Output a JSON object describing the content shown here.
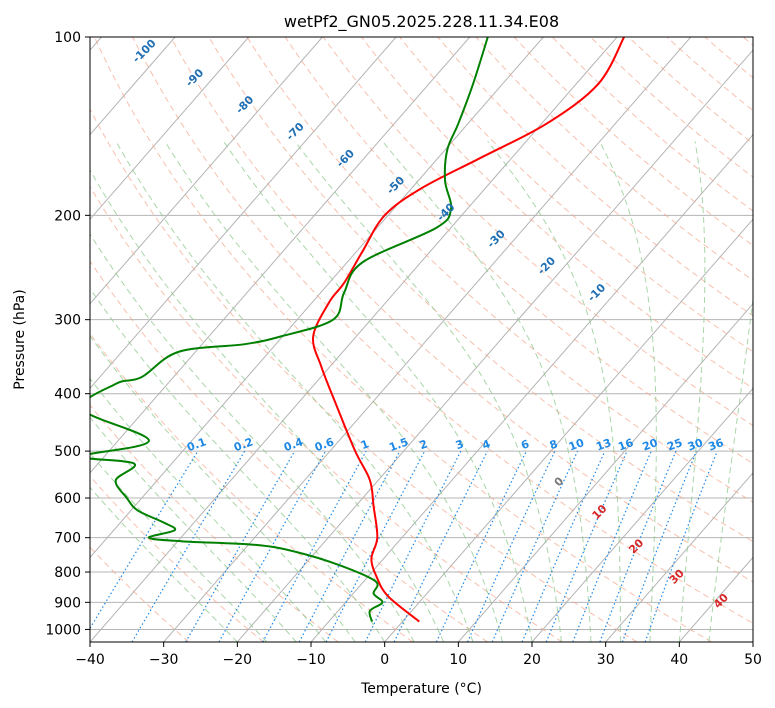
{
  "chart_data": {
    "type": "line",
    "title": "wetPf2_GN05.2025.228.11.34.E08",
    "xlabel": "Temperature (°C)",
    "ylabel": "Pressure (hPa)",
    "xlim": [
      -40,
      50
    ],
    "ylim": [
      1050,
      100
    ],
    "y_scale": "log",
    "grid": true,
    "x_ticks": [
      "−40",
      "−30",
      "−20",
      "−10",
      "0",
      "10",
      "20",
      "30",
      "40",
      "50"
    ],
    "y_ticks": [
      "100",
      "200",
      "300",
      "400",
      "500",
      "600",
      "700",
      "800",
      "900",
      "1000"
    ],
    "skew": true,
    "series": [
      {
        "color": "#ff0000",
        "x": [
          32.5,
          29,
          22,
          13,
          5,
          0,
          -3,
          -5.5,
          -7.5,
          -9.7,
          -8.6,
          -6.5,
          -4,
          -2,
          -1.5,
          -1,
          -1.8,
          -1,
          0.5,
          4.7
        ],
        "y": [
          100,
          120,
          140,
          160,
          180,
          200,
          230,
          260,
          280,
          320,
          360,
          420,
          500,
          560,
          620,
          700,
          760,
          820,
          880,
          970
        ]
      },
      {
        "color": "#008000",
        "x": [
          14,
          12,
          10,
          8.5,
          8.2,
          9,
          7,
          -3,
          -5.5,
          -7,
          -14,
          -19,
          -28,
          -33,
          -36.5,
          -41,
          -32,
          -41,
          -34,
          -36.5,
          -35,
          -33.5,
          -30,
          -28.5,
          -32,
          -27.5,
          -17.5,
          -12,
          -6,
          -1.2,
          -1.5,
          -0.3,
          -2,
          -1.7
        ],
        "y": [
          100,
          120,
          140,
          155,
          175,
          195,
          210,
          240,
          270,
          300,
          320,
          330,
          340,
          375,
          385,
          425,
          480,
          510,
          525,
          560,
          600,
          630,
          660,
          680,
          700,
          710,
          720,
          740,
          780,
          830,
          870,
          900,
          930,
          970
        ]
      }
    ],
    "mixing_ratio_labels": [
      "0.1",
      "0.2",
      "0.4",
      "0.6",
      "1",
      "1.5",
      "2",
      "3",
      "4",
      "6",
      "8",
      "10",
      "13",
      "16",
      "20",
      "25",
      "30",
      "36"
    ],
    "dry_adiabat_labels": [
      "-100",
      "-90",
      "-80",
      "-70",
      "-60",
      "-50",
      "-40",
      "-30",
      "-20",
      "-10"
    ],
    "moist_adiabat_labels": [
      "0",
      "10",
      "20",
      "30",
      "40"
    ],
    "colors": {
      "temperature": "#ff0000",
      "dewpoint": "#008000",
      "dry_adiabat": "#f5a58a",
      "moist_adiabat": "#8cc88c",
      "mixing_ratio": "#1e88e5",
      "isotherm": "#b4b4b4",
      "dry_label": "#1f6fb4",
      "moist_label": "#d62728"
    }
  }
}
